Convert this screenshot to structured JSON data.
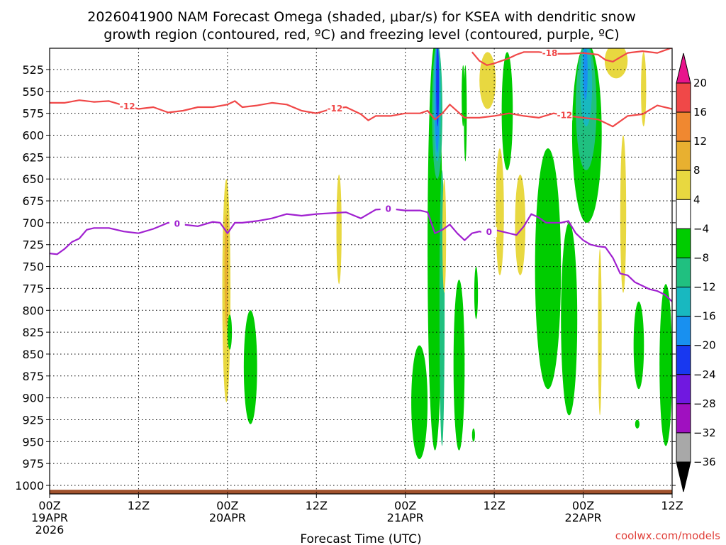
{
  "chart_data": {
    "type": "heatmap",
    "title_line1": "2026041900 NAM Forecast Omega (shaded, μbar/s) for KSEA with dendritic snow",
    "title_line2": "growth region (contoured, red, ºC) and freezing level (contoured, purple, ºC)",
    "xlabel": "Forecast Time (UTC)",
    "credit": "coolwx.com/models",
    "x_range_hours": [
      0,
      84
    ],
    "y_range_mb": [
      1000,
      500
    ],
    "y_ticks": [
      525,
      550,
      575,
      600,
      625,
      650,
      675,
      700,
      725,
      750,
      775,
      800,
      825,
      850,
      875,
      900,
      925,
      950,
      975,
      1000
    ],
    "x_ticks": [
      {
        "hour": 0,
        "line1": "00Z",
        "line2": "19APR",
        "line3": "2026"
      },
      {
        "hour": 12,
        "line1": "12Z",
        "line2": "",
        "line3": ""
      },
      {
        "hour": 24,
        "line1": "00Z",
        "line2": "20APR",
        "line3": ""
      },
      {
        "hour": 36,
        "line1": "12Z",
        "line2": "",
        "line3": ""
      },
      {
        "hour": 48,
        "line1": "00Z",
        "line2": "21APR",
        "line3": ""
      },
      {
        "hour": 60,
        "line1": "12Z",
        "line2": "",
        "line3": ""
      },
      {
        "hour": 72,
        "line1": "00Z",
        "line2": "22APR",
        "line3": ""
      },
      {
        "hour": 84,
        "line1": "12Z",
        "line2": "",
        "line3": ""
      }
    ],
    "grid": true,
    "colorbar": {
      "levels": [
        20,
        16,
        12,
        8,
        4,
        -4,
        -8,
        -12,
        -16,
        -20,
        -24,
        -28,
        -32,
        -36
      ],
      "colors": [
        "#f04848",
        "#f08830",
        "#e8b030",
        "#e8d840",
        "#ffffff",
        "#00cc00",
        "#20c080",
        "#18b8c0",
        "#1890f0",
        "#1838f0",
        "#7018e0",
        "#a010c0",
        "#a8a8a8"
      ],
      "top_color": "#e8148c",
      "bottom_color": "#000000"
    },
    "contour_labels": {
      "freezing_level": "0",
      "dgz_lower": "-12",
      "dgz_upper": "-18"
    },
    "freezing_level": {
      "hours": [
        0,
        1,
        2,
        3,
        4,
        5,
        6,
        8,
        10,
        12,
        14,
        16,
        18,
        20,
        22,
        23,
        24,
        25,
        26,
        28,
        30,
        32,
        34,
        36,
        38,
        40,
        42,
        44,
        46,
        48,
        50,
        51,
        52,
        53,
        54,
        55,
        56,
        57,
        58,
        59,
        60,
        61,
        62,
        63,
        64,
        65,
        66,
        67,
        68,
        69,
        70,
        71,
        72,
        73,
        74,
        75,
        76,
        77,
        78,
        79,
        80,
        81,
        82,
        83,
        84
      ],
      "values_mb": [
        735,
        736,
        730,
        722,
        718,
        708,
        706,
        706,
        710,
        712,
        707,
        700,
        702,
        704,
        699,
        700,
        712,
        700,
        700,
        698,
        695,
        690,
        692,
        690,
        689,
        688,
        695,
        685,
        684,
        686,
        686,
        688,
        712,
        708,
        702,
        712,
        720,
        712,
        710,
        712,
        708,
        710,
        712,
        714,
        704,
        690,
        694,
        700,
        700,
        700,
        698,
        712,
        720,
        725,
        727,
        728,
        740,
        758,
        760,
        768,
        772,
        776,
        778,
        782,
        790
      ]
    },
    "dgz_lower_isotherm": {
      "hours": [
        0,
        2,
        4,
        6,
        8,
        10,
        12,
        14,
        16,
        18,
        20,
        22,
        24,
        25,
        26,
        28,
        30,
        32,
        34,
        36,
        38,
        40,
        42,
        43,
        44,
        46,
        48,
        50,
        51,
        52,
        53,
        54,
        56,
        58,
        60,
        62,
        64,
        66,
        68,
        70,
        72,
        74,
        76,
        78,
        80,
        82,
        84
      ],
      "values_mb": [
        563,
        563,
        560,
        562,
        561,
        566,
        570,
        568,
        574,
        572,
        568,
        568,
        565,
        561,
        568,
        566,
        563,
        565,
        572,
        575,
        570,
        568,
        576,
        583,
        578,
        578,
        575,
        575,
        572,
        582,
        575,
        565,
        580,
        580,
        578,
        575,
        578,
        580,
        575,
        578,
        580,
        582,
        590,
        578,
        576,
        566,
        570
      ]
    },
    "dgz_upper_isotherm": {
      "hours": [
        57,
        58,
        59,
        60,
        61,
        62,
        63,
        64,
        66,
        68,
        70,
        72,
        74,
        75,
        76,
        77,
        78,
        80,
        82,
        84
      ],
      "values_mb": [
        505,
        515,
        520,
        518,
        515,
        512,
        508,
        505,
        505,
        507,
        507,
        506,
        508,
        514,
        516,
        511,
        506,
        504,
        506,
        500
      ]
    },
    "omega_regions": [
      {
        "value": 6,
        "hours": [
          23.3,
          24.4
        ],
        "mb": [
          650,
          905
        ]
      },
      {
        "value": 10,
        "hours": [
          23.6,
          24.1
        ],
        "mb": [
          690,
          820
        ]
      },
      {
        "value": -6,
        "hours": [
          24.0,
          24.6
        ],
        "mb": [
          805,
          845
        ]
      },
      {
        "value": -6,
        "hours": [
          26.2,
          28.0
        ],
        "mb": [
          800,
          930
        ]
      },
      {
        "value": 6,
        "hours": [
          38.7,
          39.4
        ],
        "mb": [
          645,
          770
        ]
      },
      {
        "value": -6,
        "hours": [
          48.8,
          51.0
        ],
        "mb": [
          840,
          970
        ]
      },
      {
        "value": -6,
        "hours": [
          51.0,
          53.0
        ],
        "mb": [
          495,
          960
        ]
      },
      {
        "value": -10,
        "hours": [
          51.6,
          53.0
        ],
        "mb": [
          495,
          650
        ]
      },
      {
        "value": -14,
        "hours": [
          51.8,
          52.8
        ],
        "mb": [
          495,
          630
        ]
      },
      {
        "value": -18,
        "hours": [
          52.0,
          52.6
        ],
        "mb": [
          495,
          620
        ]
      },
      {
        "value": -22,
        "hours": [
          52.2,
          52.5
        ],
        "mb": [
          495,
          590
        ]
      },
      {
        "value": -10,
        "hours": [
          52.6,
          53.3
        ],
        "mb": [
          640,
          955
        ]
      },
      {
        "value": -6,
        "hours": [
          54.5,
          56.0
        ],
        "mb": [
          765,
          960
        ]
      },
      {
        "value": -6,
        "hours": [
          55.6,
          56.0
        ],
        "mb": [
          520,
          590
        ]
      },
      {
        "value": -6,
        "hours": [
          56.0,
          56.2
        ],
        "mb": [
          520,
          630
        ]
      },
      {
        "value": 6,
        "hours": [
          53.0,
          53.5
        ],
        "mb": [
          650,
          780
        ]
      },
      {
        "value": 6,
        "hours": [
          60.2,
          61.3
        ],
        "mb": [
          615,
          760
        ]
      },
      {
        "value": 6,
        "hours": [
          58.0,
          60.2
        ],
        "mb": [
          505,
          570
        ]
      },
      {
        "value": -6,
        "hours": [
          57.3,
          57.8
        ],
        "mb": [
          750,
          810
        ]
      },
      {
        "value": -6,
        "hours": [
          61.0,
          62.5
        ],
        "mb": [
          505,
          640
        ]
      },
      {
        "value": 6,
        "hours": [
          62.8,
          64.2
        ],
        "mb": [
          645,
          760
        ]
      },
      {
        "value": -6,
        "hours": [
          65.5,
          69.0
        ],
        "mb": [
          615,
          890
        ]
      },
      {
        "value": -6,
        "hours": [
          69.0,
          71.2
        ],
        "mb": [
          700,
          920
        ]
      },
      {
        "value": -6,
        "hours": [
          70.5,
          74.5
        ],
        "mb": [
          495,
          700
        ]
      },
      {
        "value": -10,
        "hours": [
          71.0,
          73.8
        ],
        "mb": [
          495,
          640
        ]
      },
      {
        "value": -14,
        "hours": [
          71.6,
          73.2
        ],
        "mb": [
          495,
          590
        ]
      },
      {
        "value": -18,
        "hours": [
          72.0,
          72.6
        ],
        "mb": [
          495,
          560
        ]
      },
      {
        "value": 6,
        "hours": [
          74.0,
          74.5
        ],
        "mb": [
          730,
          920
        ]
      },
      {
        "value": 6,
        "hours": [
          74.9,
          78.0
        ],
        "mb": [
          495,
          535
        ]
      },
      {
        "value": 6,
        "hours": [
          77.0,
          77.8
        ],
        "mb": [
          600,
          780
        ]
      },
      {
        "value": 6,
        "hours": [
          79.8,
          80.5
        ],
        "mb": [
          505,
          590
        ]
      },
      {
        "value": -6,
        "hours": [
          78.8,
          80.2
        ],
        "mb": [
          790,
          890
        ]
      },
      {
        "value": -6,
        "hours": [
          82.3,
          84.0
        ],
        "mb": [
          770,
          955
        ]
      },
      {
        "value": -6,
        "hours": [
          79.0,
          79.6
        ],
        "mb": [
          925,
          935
        ]
      },
      {
        "value": -6,
        "hours": [
          57.0,
          57.4
        ],
        "mb": [
          935,
          950
        ]
      }
    ],
    "terrain_top_mb": 1005
  }
}
